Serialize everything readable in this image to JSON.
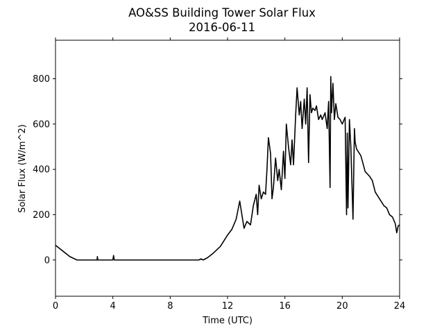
{
  "chart_data": {
    "type": "line",
    "title": "AO&SS Building Tower Solar Flux",
    "subtitle": "2016-06-11",
    "xlabel": "Time (UTC)",
    "ylabel": "Solar Flux (W/m^2)",
    "xlim": [
      0,
      24
    ],
    "ylim": [
      -160,
      970
    ],
    "xticks": [
      0,
      4,
      8,
      12,
      16,
      20,
      24
    ],
    "yticks": [
      0,
      200,
      400,
      600,
      800
    ],
    "grid": false,
    "series": [
      {
        "color": "#000000",
        "x": [
          0,
          0.5,
          1.0,
          1.5,
          2.0,
          2.9,
          2.92,
          2.95,
          3.0,
          4.0,
          4.05,
          4.1,
          4.15,
          5.0,
          6.0,
          7.0,
          8.0,
          9.0,
          10.0,
          10.15,
          10.3,
          10.6,
          11.0,
          11.5,
          12.0,
          12.3,
          12.6,
          12.85,
          13.0,
          13.15,
          13.35,
          13.6,
          13.8,
          14.0,
          14.1,
          14.2,
          14.35,
          14.5,
          14.65,
          14.75,
          14.85,
          15.0,
          15.1,
          15.2,
          15.35,
          15.5,
          15.6,
          15.75,
          15.9,
          16.0,
          16.1,
          16.25,
          16.4,
          16.5,
          16.6,
          16.75,
          16.85,
          17.0,
          17.1,
          17.2,
          17.35,
          17.45,
          17.55,
          17.65,
          17.75,
          17.85,
          17.95,
          18.1,
          18.2,
          18.35,
          18.5,
          18.6,
          18.8,
          18.95,
          19.05,
          19.15,
          19.2,
          19.25,
          19.35,
          19.45,
          19.55,
          19.7,
          19.85,
          20.0,
          20.2,
          20.3,
          20.35,
          20.4,
          20.5,
          20.6,
          20.75,
          20.85,
          20.9,
          21.0,
          21.1,
          21.3,
          21.6,
          21.9,
          22.1,
          22.3,
          22.5,
          22.7,
          22.9,
          23.1,
          23.3,
          23.5,
          23.7,
          23.8,
          23.9,
          24.0
        ],
        "values": [
          65,
          40,
          15,
          0,
          0,
          0,
          15,
          0,
          0,
          0,
          20,
          0,
          0,
          0,
          0,
          0,
          0,
          0,
          0,
          5,
          0,
          10,
          30,
          60,
          110,
          135,
          180,
          260,
          200,
          140,
          170,
          155,
          240,
          290,
          200,
          330,
          270,
          300,
          290,
          400,
          540,
          470,
          270,
          320,
          450,
          350,
          400,
          310,
          480,
          360,
          600,
          500,
          420,
          530,
          420,
          640,
          760,
          640,
          700,
          580,
          710,
          600,
          760,
          430,
          730,
          650,
          670,
          660,
          680,
          620,
          640,
          620,
          650,
          580,
          700,
          320,
          810,
          650,
          780,
          620,
          690,
          630,
          620,
          600,
          630,
          200,
          560,
          230,
          620,
          500,
          180,
          580,
          520,
          490,
          480,
          460,
          390,
          370,
          350,
          300,
          280,
          260,
          240,
          230,
          200,
          190,
          160,
          120,
          150,
          155
        ]
      }
    ]
  }
}
